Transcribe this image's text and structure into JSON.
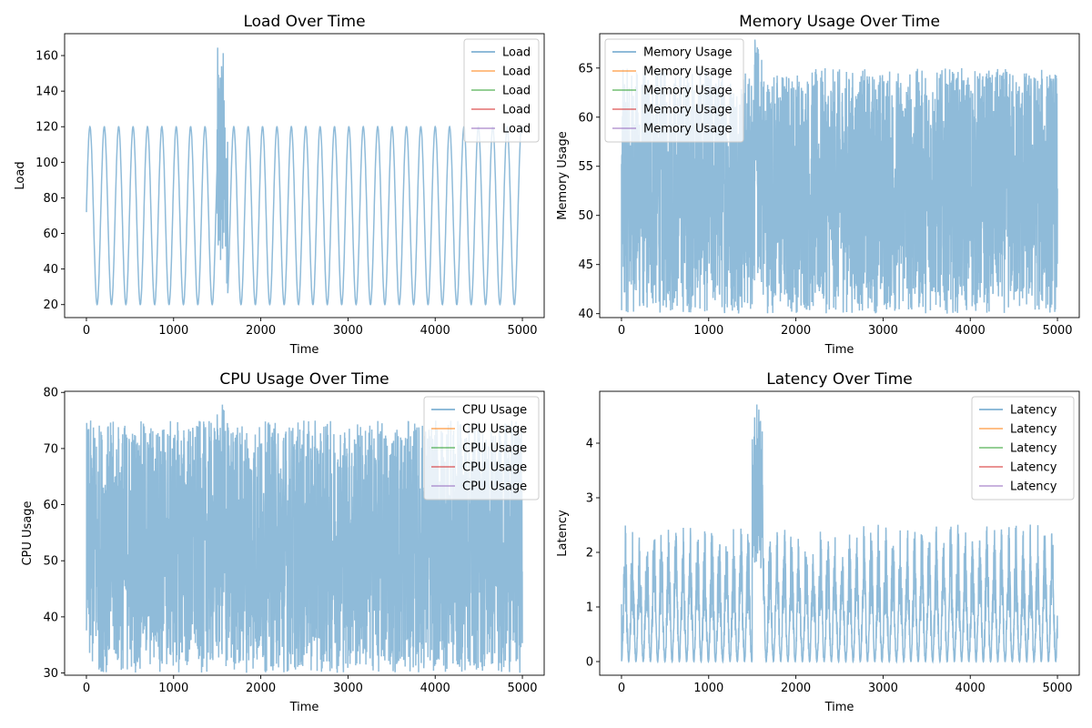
{
  "figure": {
    "background": "#ffffff"
  },
  "colors": {
    "blue": "#1f77b4",
    "orange": "#ff7f0e",
    "green": "#2ca02c",
    "red": "#d62728",
    "purple": "#9467bd"
  },
  "chart_data": [
    {
      "type": "line",
      "title": "Load Over Time",
      "xlabel": "Time",
      "ylabel": "Load",
      "xlim": [
        -250,
        5250
      ],
      "ylim": [
        12.7,
        172.3
      ],
      "xticks": [
        0,
        1000,
        2000,
        3000,
        4000,
        5000
      ],
      "yticks": [
        20,
        40,
        60,
        80,
        100,
        120,
        140,
        160
      ],
      "legend_position": "upper right",
      "legend": [
        "Load",
        "Load",
        "Load",
        "Load",
        "Load"
      ],
      "series": [
        {
          "name": "Load",
          "pattern": "sine wave, period about 165 time units",
          "x_range": [
            0,
            5000
          ],
          "min": 20,
          "max": 120,
          "start": 72,
          "end": 95,
          "anomaly": {
            "x_range": [
              1500,
              1620
            ],
            "peaks": [
              165,
              158
            ],
            "low": 30
          }
        }
      ]
    },
    {
      "type": "line",
      "title": "Memory Usage Over Time",
      "xlabel": "Time",
      "ylabel": "Memory Usage",
      "xlim": [
        -250,
        5250
      ],
      "ylim": [
        39.6,
        68.5
      ],
      "xticks": [
        0,
        1000,
        2000,
        3000,
        4000,
        5000
      ],
      "yticks": [
        40,
        45,
        50,
        55,
        60,
        65
      ],
      "legend_position": "upper left",
      "legend": [
        "Memory Usage",
        "Memory Usage",
        "Memory Usage",
        "Memory Usage",
        "Memory Usage"
      ],
      "series": [
        {
          "name": "Memory Usage",
          "pattern": "dense noise filling a band",
          "x_range": [
            0,
            5000
          ],
          "band": [
            40,
            65
          ],
          "anomaly": {
            "x_range": [
              1500,
              1620
            ],
            "high": 68,
            "low": 43
          }
        }
      ]
    },
    {
      "type": "line",
      "title": "CPU Usage Over Time",
      "xlabel": "Time",
      "ylabel": "CPU Usage",
      "xlim": [
        -250,
        5250
      ],
      "ylim": [
        29.6,
        80.2
      ],
      "xticks": [
        0,
        1000,
        2000,
        3000,
        4000,
        5000
      ],
      "yticks": [
        30,
        40,
        50,
        60,
        70,
        80
      ],
      "legend_position": "upper right",
      "legend": [
        "CPU Usage",
        "CPU Usage",
        "CPU Usage",
        "CPU Usage",
        "CPU Usage"
      ],
      "series": [
        {
          "name": "CPU Usage",
          "pattern": "dense noise filling a band",
          "x_range": [
            0,
            5000
          ],
          "band": [
            30,
            75
          ],
          "anomaly": {
            "x_range": [
              1500,
              1620
            ],
            "high": 78
          }
        }
      ]
    },
    {
      "type": "line",
      "title": "Latency Over Time",
      "xlabel": "Time",
      "ylabel": "Latency",
      "xlim": [
        -250,
        5250
      ],
      "ylim": [
        -0.25,
        4.95
      ],
      "xticks": [
        0,
        1000,
        2000,
        3000,
        4000,
        5000
      ],
      "yticks": [
        0,
        1,
        2,
        3,
        4
      ],
      "legend_position": "upper right",
      "legend": [
        "Latency",
        "Latency",
        "Latency",
        "Latency",
        "Latency"
      ],
      "series": [
        {
          "name": "Latency",
          "pattern": "oscillating, period about 83 time units, with noise",
          "x_range": [
            0,
            5000
          ],
          "min": 0,
          "max": 2.55,
          "start": 1.05,
          "anomaly": {
            "x_range": [
              1500,
              1620
            ],
            "peak": 4.75
          }
        }
      ]
    }
  ]
}
